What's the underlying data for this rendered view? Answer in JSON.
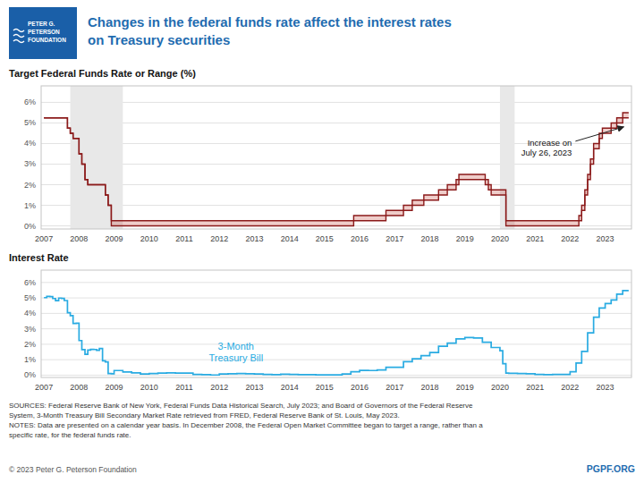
{
  "title": "Changes in the federal funds rate affect the interest rates\non Treasury securities",
  "color": "#1f6cb0",
  "logo": {
    "text": "PETER G.\nPETERSON\nFOUNDATION",
    "color": "#1a5fa8"
  },
  "notes": "SOURCES: Federal Reserve Bank of New York, Federal Funds Data Historical Search, July 2023; and Board of Governors of the Federal Reserve\nSystem, 3-Month Treasury Bill Secondary Market Rate retrieved from FRED, Federal Reserve Bank of St. Louis, May 2023.\nNOTES: Data are presented on a calendar year basis. In December 2008, the Federal Open Market Committee began to target a range, rather than a\nspecific rate, for the federal funds rate.",
  "credits": [
    "© 2023 Peter G. Peterson Foundation",
    "PGPF.ORG"
  ],
  "chart_data": [
    {
      "type": "band",
      "title": "Target Federal Funds Rate or Range (%)",
      "color": "#c0392b",
      "x": [
        2007.0,
        2007.58,
        2007.67,
        2007.75,
        2007.83,
        2007.92,
        2008.0,
        2008.08,
        2008.17,
        2008.25,
        2008.33,
        2008.42,
        2008.5,
        2008.58,
        2008.67,
        2008.75,
        2008.83,
        2008.92,
        2009.0,
        2015.75,
        2015.83,
        2016.0,
        2016.75,
        2017.0,
        2017.25,
        2017.5,
        2017.83,
        2018.0,
        2018.25,
        2018.5,
        2018.75,
        2018.83,
        2019.0,
        2019.58,
        2019.67,
        2019.75,
        2019.83,
        2020.0,
        2020.17,
        2022.0,
        2022.25,
        2022.33,
        2022.42,
        2022.5,
        2022.58,
        2022.67,
        2022.83,
        2022.92,
        2023.0,
        2023.17,
        2023.33,
        2023.5,
        2023.67
      ],
      "series": [
        {
          "color": "#8b1a1a",
          "values": [
            5.25,
            5.25,
            4.75,
            4.5,
            4.25,
            4.25,
            3.5,
            3.0,
            2.25,
            2.0,
            2.0,
            2.0,
            2.0,
            2.0,
            2.0,
            1.5,
            1.0,
            0.25,
            0.25,
            0.25,
            0.5,
            0.5,
            0.75,
            0.75,
            1.0,
            1.25,
            1.5,
            1.5,
            1.75,
            2.0,
            2.25,
            2.5,
            2.5,
            2.25,
            2.0,
            1.75,
            1.75,
            1.75,
            0.25,
            0.25,
            0.5,
            1.0,
            1.75,
            2.5,
            3.25,
            4.0,
            4.5,
            4.75,
            4.75,
            5.0,
            5.25,
            5.5,
            5.5
          ]
        },
        {
          "color": "#8b1a1a",
          "values": [
            5.25,
            5.25,
            4.75,
            4.5,
            4.25,
            4.25,
            3.5,
            3.0,
            2.25,
            2.0,
            2.0,
            2.0,
            2.0,
            2.0,
            2.0,
            1.5,
            1.0,
            0.0,
            0.0,
            0.0,
            0.25,
            0.25,
            0.5,
            0.5,
            0.75,
            1.0,
            1.25,
            1.25,
            1.5,
            1.75,
            2.0,
            2.25,
            2.25,
            2.0,
            1.75,
            1.5,
            1.5,
            1.5,
            0.0,
            0.0,
            0.25,
            0.75,
            1.5,
            2.25,
            3.0,
            3.75,
            4.25,
            4.5,
            4.5,
            4.75,
            5.0,
            5.25,
            5.25
          ]
        }
      ],
      "shaded_ranges": [
        [
          2007.75,
          2009.25
        ],
        [
          2020.0,
          2020.42
        ]
      ],
      "annotations": [
        {
          "text": "Increase on\nJuly 26, 2023",
          "x": 2023.58,
          "y": 4.85
        }
      ],
      "xlim": [
        2006.92,
        2023.75
      ],
      "ylim": [
        -0.15,
        6.8
      ],
      "xticks": [
        2007,
        2008,
        2009,
        2010,
        2011,
        2012,
        2013,
        2014,
        2015,
        2016,
        2017,
        2018,
        2019,
        2020,
        2021,
        2022,
        2023
      ],
      "yticks": [
        {
          "value": 0,
          "label": "0%"
        },
        {
          "value": 1,
          "label": "1%"
        },
        {
          "value": 2,
          "label": "2%"
        },
        {
          "value": 3,
          "label": "3%"
        },
        {
          "value": 4,
          "label": "4%"
        },
        {
          "value": 5,
          "label": "5%"
        },
        {
          "value": 6,
          "label": "6%"
        }
      ],
      "grid": true
    },
    {
      "type": "step",
      "title": "Interest Rate",
      "x": [
        2007.0,
        2007.08,
        2007.17,
        2007.25,
        2007.33,
        2007.42,
        2007.5,
        2007.58,
        2007.67,
        2007.75,
        2007.83,
        2007.92,
        2008.0,
        2008.08,
        2008.17,
        2008.25,
        2008.33,
        2008.42,
        2008.5,
        2008.58,
        2008.67,
        2008.75,
        2008.83,
        2008.92,
        2009.0,
        2009.25,
        2009.5,
        2009.75,
        2010.0,
        2010.25,
        2010.5,
        2010.75,
        2011.0,
        2011.25,
        2011.5,
        2011.75,
        2012.0,
        2012.25,
        2012.5,
        2012.75,
        2013.0,
        2013.25,
        2013.5,
        2013.75,
        2014.0,
        2014.25,
        2014.5,
        2014.75,
        2015.0,
        2015.25,
        2015.5,
        2015.75,
        2016.0,
        2016.25,
        2016.5,
        2016.75,
        2017.0,
        2017.25,
        2017.5,
        2017.75,
        2018.0,
        2018.25,
        2018.5,
        2018.75,
        2019.0,
        2019.25,
        2019.5,
        2019.75,
        2020.0,
        2020.08,
        2020.17,
        2020.25,
        2020.5,
        2020.75,
        2021.0,
        2021.25,
        2021.5,
        2021.75,
        2022.0,
        2022.17,
        2022.33,
        2022.5,
        2022.67,
        2022.83,
        2023.0,
        2023.17,
        2023.33,
        2023.5,
        2023.67
      ],
      "series": [
        {
          "name": "3-Month\nTreasury Bill",
          "color": "#29abe2",
          "values": [
            5.02,
            5.1,
            5.09,
            4.96,
            4.82,
            4.99,
            4.97,
            4.83,
            4.04,
            3.85,
            3.35,
            3.36,
            2.24,
            1.65,
            1.35,
            1.62,
            1.67,
            1.66,
            1.61,
            1.72,
            0.93,
            0.86,
            0.1,
            0.09,
            0.3,
            0.21,
            0.15,
            0.07,
            0.1,
            0.13,
            0.15,
            0.13,
            0.13,
            0.05,
            0.03,
            0.01,
            0.08,
            0.09,
            0.1,
            0.09,
            0.07,
            0.04,
            0.03,
            0.06,
            0.04,
            0.03,
            0.03,
            0.02,
            0.02,
            0.02,
            0.07,
            0.22,
            0.31,
            0.3,
            0.33,
            0.51,
            0.51,
            0.87,
            1.06,
            1.26,
            1.47,
            1.87,
            2.07,
            2.35,
            2.43,
            2.4,
            2.13,
            1.79,
            1.58,
            0.74,
            0.13,
            0.12,
            0.1,
            0.09,
            0.04,
            0.03,
            0.05,
            0.05,
            0.22,
            0.78,
            1.54,
            2.74,
            3.75,
            4.34,
            4.64,
            4.87,
            5.24,
            5.47,
            5.47
          ]
        }
      ],
      "xlim": [
        2006.92,
        2023.75
      ],
      "ylim": [
        -0.15,
        6.8
      ],
      "xticks": [
        2007,
        2008,
        2009,
        2010,
        2011,
        2012,
        2013,
        2014,
        2015,
        2016,
        2017,
        2018,
        2019,
        2020,
        2021,
        2022,
        2023
      ],
      "yticks": [
        {
          "value": 0,
          "label": "0%"
        },
        {
          "value": 1,
          "label": "1%"
        },
        {
          "value": 2,
          "label": "2%"
        },
        {
          "value": 3,
          "label": "3%"
        },
        {
          "value": 4,
          "label": "4%"
        },
        {
          "value": 5,
          "label": "5%"
        },
        {
          "value": 6,
          "label": "6%"
        }
      ],
      "grid": true
    }
  ]
}
